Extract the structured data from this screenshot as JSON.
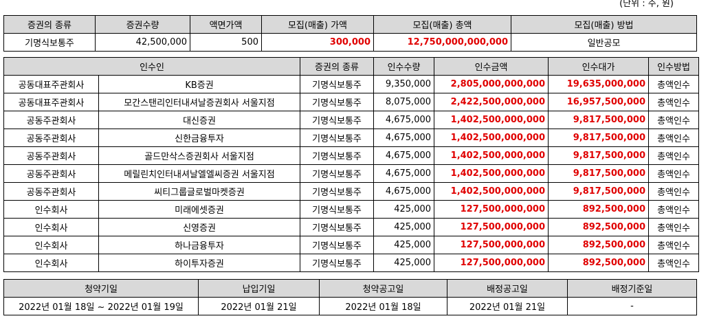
{
  "unit": "(단위 : 주, 원)",
  "offering": {
    "headers": [
      "증권의 종류",
      "증권수량",
      "액면가액",
      "모집(매출) 가액",
      "모집(매출) 총액",
      "모집(매출) 방법"
    ],
    "row": [
      "기명식보통주",
      "42,500,000",
      "500",
      "300,000",
      "12,750,000,000,000",
      "일반공모"
    ]
  },
  "underwriters": {
    "headers": [
      "인수인",
      "증권의 종류",
      "인수수량",
      "인수금액",
      "인수대가",
      "인수방법"
    ],
    "rows": [
      [
        "공동대표주관회사",
        "KB증권",
        "기명식보통주",
        "9,350,000",
        "2,805,000,000,000",
        "19,635,000,000",
        "총액인수"
      ],
      [
        "공동대표주관회사",
        "모간스탠리인터내셔날증권회사 서울지점",
        "기명식보통주",
        "8,075,000",
        "2,422,500,000,000",
        "16,957,500,000",
        "총액인수"
      ],
      [
        "공동주관회사",
        "대신증권",
        "기명식보통주",
        "4,675,000",
        "1,402,500,000,000",
        "9,817,500,000",
        "총액인수"
      ],
      [
        "공동주관회사",
        "신한금융투자",
        "기명식보통주",
        "4,675,000",
        "1,402,500,000,000",
        "9,817,500,000",
        "총액인수"
      ],
      [
        "공동주관회사",
        "골드만삭스증권회사 서울지점",
        "기명식보통주",
        "4,675,000",
        "1,402,500,000,000",
        "9,817,500,000",
        "총액인수"
      ],
      [
        "공동주관회사",
        "메릴린치인터내셔날엘엘씨증권 서울지점",
        "기명식보통주",
        "4,675,000",
        "1,402,500,000,000",
        "9,817,500,000",
        "총액인수"
      ],
      [
        "공동주관회사",
        "씨티그룹글로벌마켓증권",
        "기명식보통주",
        "4,675,000",
        "1,402,500,000,000",
        "9,817,500,000",
        "총액인수"
      ],
      [
        "인수회사",
        "미래에셋증권",
        "기명식보통주",
        "425,000",
        "127,500,000,000",
        "892,500,000",
        "총액인수"
      ],
      [
        "인수회사",
        "신영증권",
        "기명식보통주",
        "425,000",
        "127,500,000,000",
        "892,500,000",
        "총액인수"
      ],
      [
        "인수회사",
        "하나금융투자",
        "기명식보통주",
        "425,000",
        "127,500,000,000",
        "892,500,000",
        "총액인수"
      ],
      [
        "인수회사",
        "하이투자증권",
        "기명식보통주",
        "425,000",
        "127,500,000,000",
        "892,500,000",
        "총액인수"
      ]
    ]
  },
  "schedule": {
    "headers": [
      "청약기일",
      "납입기일",
      "청약공고일",
      "배정공고일",
      "배정기준일"
    ],
    "row": [
      "2022년 01월 18일 ~ 2022년 01월 19일",
      "2022년 01월 21일",
      "2022년 01월 18일",
      "2022년 01월 21일",
      "-"
    ]
  }
}
